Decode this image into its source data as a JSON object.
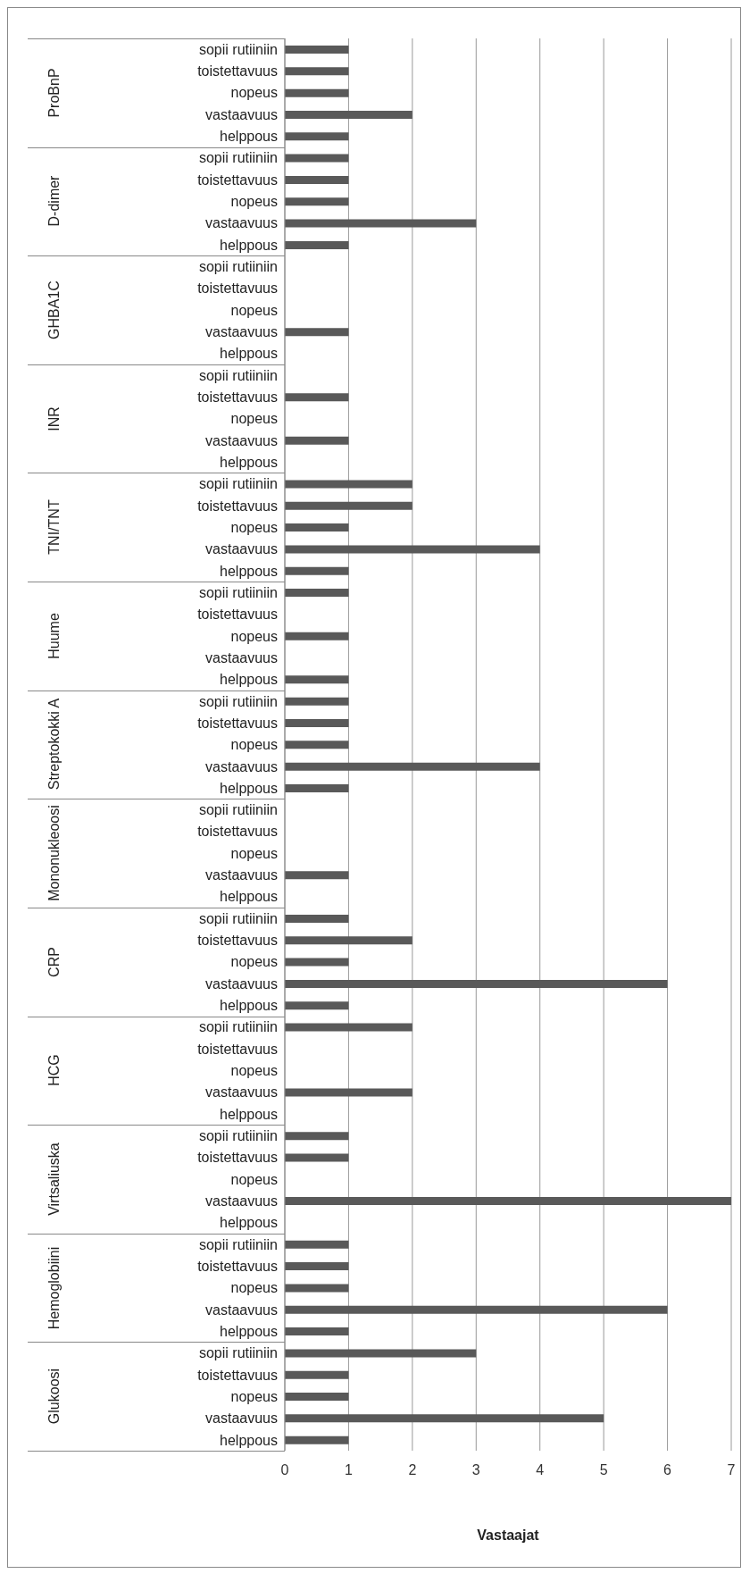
{
  "chart_data": {
    "type": "bar",
    "orientation": "horizontal",
    "categories": [
      "sopii rutiiniin",
      "toistettavuus",
      "nopeus",
      "vastaavuus",
      "helppous",
      "sopii rutiiniin",
      "toistettavuus",
      "nopeus",
      "vastaavuus",
      "helppous",
      "sopii rutiiniin",
      "toistettavuus",
      "nopeus",
      "vastaavuus",
      "helppous",
      "sopii rutiiniin",
      "toistettavuus",
      "nopeus",
      "vastaavuus",
      "helppous",
      "sopii rutiiniin",
      "toistettavuus",
      "nopeus",
      "vastaavuus",
      "helppous",
      "sopii rutiiniin",
      "toistettavuus",
      "nopeus",
      "vastaavuus",
      "helppous",
      "sopii rutiiniin",
      "toistettavuus",
      "nopeus",
      "vastaavuus",
      "helppous",
      "sopii rutiiniin",
      "toistettavuus",
      "nopeus",
      "vastaavuus",
      "helppous",
      "sopii rutiiniin",
      "toistettavuus",
      "nopeus",
      "vastaavuus",
      "helppous",
      "sopii rutiiniin",
      "toistettavuus",
      "nopeus",
      "vastaavuus",
      "helppous",
      "sopii rutiiniin",
      "toistettavuus",
      "nopeus",
      "vastaavuus",
      "helppous",
      "sopii rutiiniin",
      "toistettavuus",
      "nopeus",
      "vastaavuus",
      "helppous",
      "sopii rutiiniin",
      "toistettavuus",
      "nopeus",
      "vastaavuus",
      "helppous"
    ],
    "values": [
      1,
      1,
      1,
      2,
      1,
      1,
      1,
      1,
      3,
      1,
      0,
      0,
      0,
      1,
      0,
      0,
      1,
      0,
      1,
      0,
      2,
      2,
      1,
      4,
      1,
      1,
      0,
      1,
      0,
      1,
      1,
      1,
      1,
      4,
      1,
      0,
      0,
      0,
      1,
      0,
      1,
      2,
      1,
      6,
      1,
      2,
      0,
      0,
      2,
      0,
      1,
      1,
      0,
      7,
      0,
      1,
      1,
      1,
      6,
      1,
      3,
      1,
      1,
      5,
      1
    ],
    "color": "#595959",
    "annotations": [
      "ProBnP",
      "D-dimer",
      "GHBA1C",
      "INR",
      "TNI/TNT",
      "Huume",
      "Streptokokki A",
      "Mononukleoosi",
      "CRP",
      "HCG",
      "Virtsaliuska",
      "Hemoglobiini",
      "Glukoosi"
    ],
    "xlabel": "Vastaajat",
    "xlim": [
      0,
      7
    ],
    "xticks": [
      0,
      1,
      2,
      3,
      4,
      5,
      6,
      7
    ],
    "grid": "x"
  }
}
